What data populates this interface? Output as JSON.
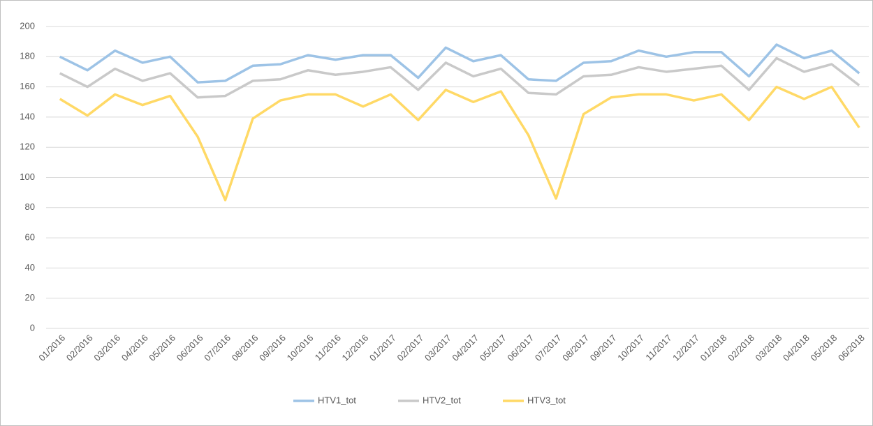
{
  "chart_data": {
    "type": "line",
    "categories": [
      "01/2016",
      "02/2016",
      "03/2016",
      "04/2016",
      "05/2016",
      "06/2016",
      "07/2016",
      "08/2016",
      "09/2016",
      "10/2016",
      "11/2016",
      "12/2016",
      "01/2017",
      "02/2017",
      "03/2017",
      "04/2017",
      "05/2017",
      "06/2017",
      "07/2017",
      "08/2017",
      "09/2017",
      "10/2017",
      "11/2017",
      "12/2017",
      "01/2018",
      "02/2018",
      "03/2018",
      "04/2018",
      "05/2018",
      "06/2018"
    ],
    "series": [
      {
        "name": "HTV1_tot",
        "color": "#9dc3e6",
        "values": [
          180,
          171,
          184,
          176,
          180,
          163,
          164,
          174,
          175,
          181,
          178,
          181,
          181,
          166,
          186,
          177,
          181,
          165,
          164,
          176,
          177,
          184,
          180,
          183,
          183,
          167,
          188,
          179,
          184,
          169
        ]
      },
      {
        "name": "HTV2_tot",
        "color": "#c9c9c9",
        "values": [
          169,
          160,
          172,
          164,
          169,
          153,
          154,
          164,
          165,
          171,
          168,
          170,
          173,
          158,
          176,
          167,
          172,
          156,
          155,
          167,
          168,
          173,
          170,
          172,
          174,
          158,
          179,
          170,
          175,
          161
        ]
      },
      {
        "name": "HTV3_tot",
        "color": "#ffd966",
        "values": [
          152,
          141,
          155,
          148,
          154,
          127,
          85,
          139,
          151,
          155,
          155,
          147,
          155,
          138,
          158,
          150,
          157,
          128,
          86,
          142,
          153,
          155,
          155,
          151,
          155,
          138,
          160,
          152,
          160,
          133
        ]
      }
    ],
    "ylim": [
      0,
      200
    ],
    "yticks": [
      0,
      20,
      40,
      60,
      80,
      100,
      120,
      140,
      160,
      180,
      200
    ],
    "grid": true,
    "legend": "bottom"
  }
}
